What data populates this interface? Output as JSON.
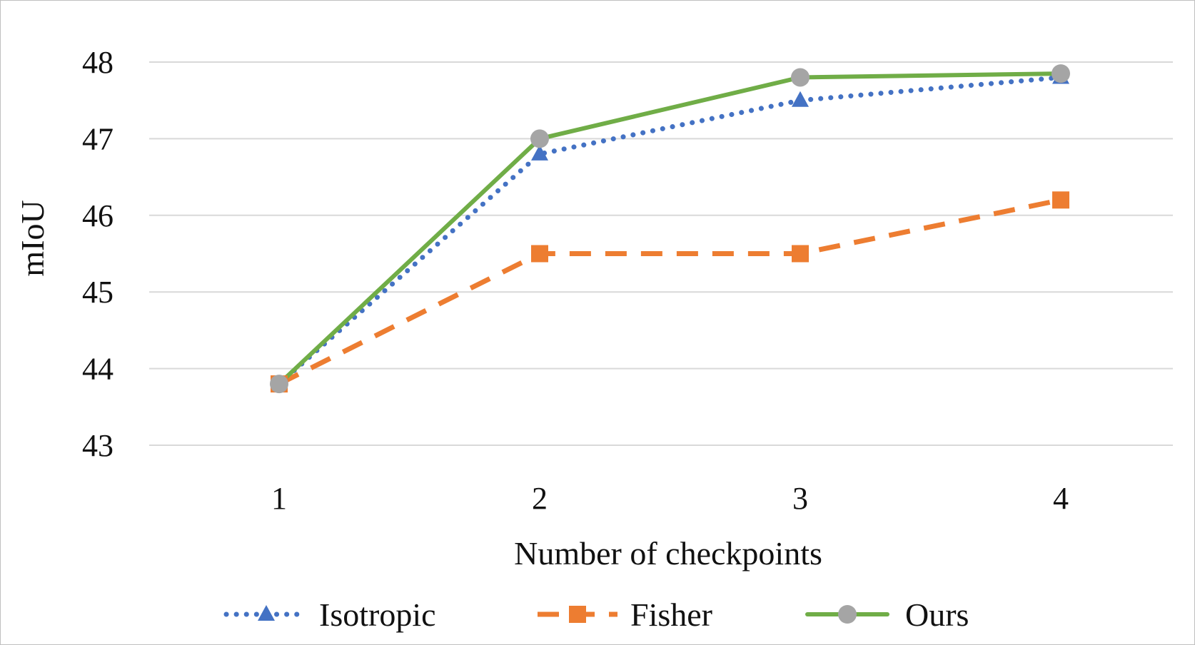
{
  "chart_data": {
    "type": "line",
    "title": "",
    "xlabel": "Number of checkpoints",
    "ylabel": "mIoU",
    "x": [
      "1",
      "2",
      "3",
      "4"
    ],
    "ylim": [
      43,
      48
    ],
    "yticks": [
      "43",
      "44",
      "45",
      "46",
      "47",
      "48"
    ],
    "grid": true,
    "legend_position": "bottom",
    "series": [
      {
        "name": "Isotropic",
        "values": [
          43.8,
          46.8,
          47.5,
          47.8
        ],
        "color": "#4472c4",
        "line": "dotted",
        "marker": "triangle"
      },
      {
        "name": "Fisher",
        "values": [
          43.8,
          45.5,
          45.5,
          46.2
        ],
        "color": "#ed7d31",
        "line": "dashed",
        "marker": "square"
      },
      {
        "name": "Ours",
        "values": [
          43.8,
          47.0,
          47.8,
          47.85
        ],
        "color": "#70ad47",
        "line": "solid",
        "marker": "circle",
        "marker_color": "#a5a5a5"
      }
    ]
  }
}
